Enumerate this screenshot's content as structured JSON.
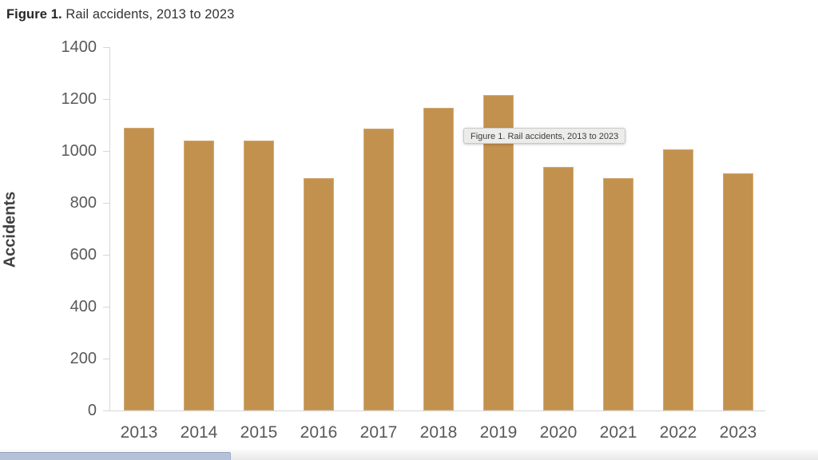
{
  "page": {
    "title_prefix": "Figure 1.",
    "title_rest": " Rail accidents, 2013 to 2023"
  },
  "tooltip": {
    "text": "Figure 1. Rail accidents, 2013 to 2023"
  },
  "chart_data": {
    "type": "bar",
    "title": "Figure 1. Rail accidents, 2013 to 2023",
    "categories": [
      "2013",
      "2014",
      "2015",
      "2016",
      "2017",
      "2018",
      "2019",
      "2020",
      "2021",
      "2022",
      "2023"
    ],
    "values": [
      1090,
      1040,
      1040,
      895,
      1085,
      1165,
      1215,
      940,
      895,
      1005,
      915
    ],
    "xlabel": "",
    "ylabel": "Accidents",
    "ylim": [
      0,
      1400
    ],
    "ytick_step": 200,
    "grid": false,
    "legend": null,
    "bar_color": "#c2914e",
    "axis_color": "#d6d6d6",
    "tick_label_color": "#595959",
    "axis_title_color": "#404040"
  },
  "scrollbar": {
    "thumb_color": "#b6c1d9"
  }
}
